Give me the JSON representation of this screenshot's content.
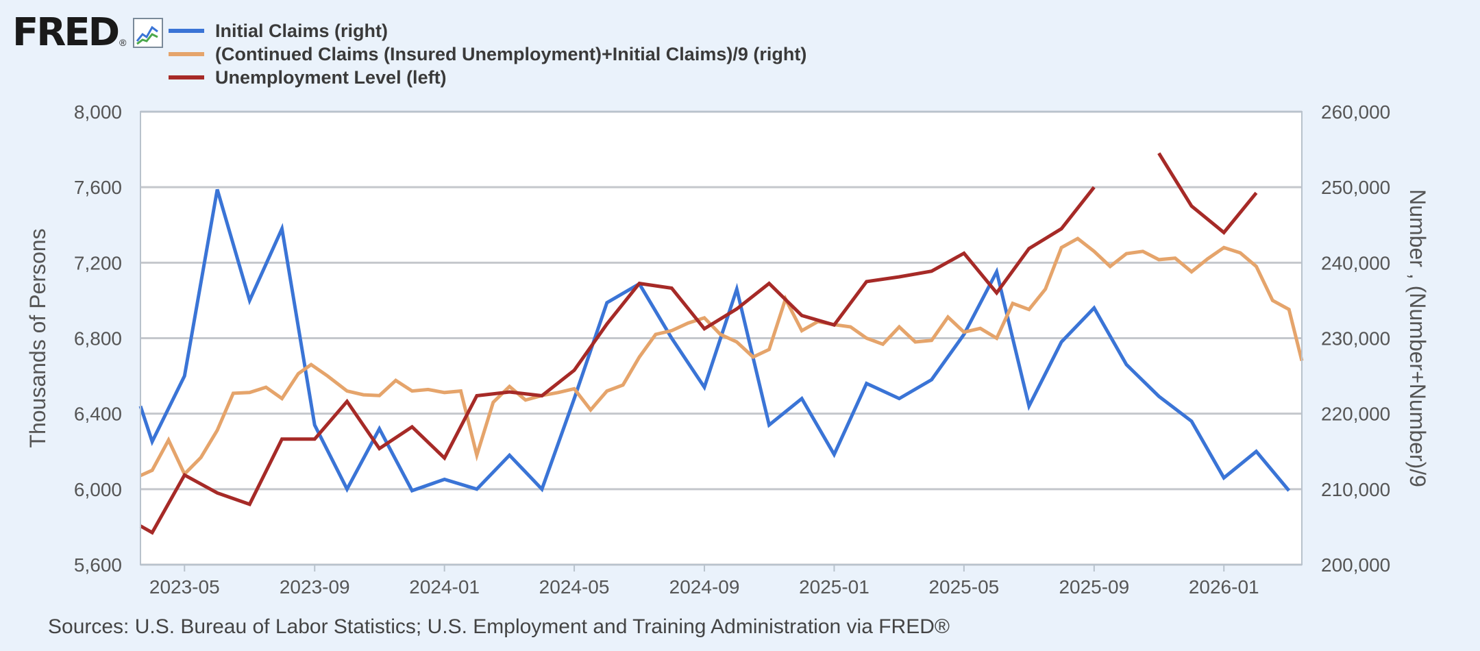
{
  "brand": {
    "logo_text": "FRED",
    "reg_mark": "®",
    "icon": "line-graph-icon"
  },
  "legend": [
    {
      "label": "Initial Claims (right)",
      "color": "#3a74d6"
    },
    {
      "label": "(Continued Claims (Insured Unemployment)+Initial Claims)/9 (right)",
      "color": "#e5a46b"
    },
    {
      "label": "Unemployment Level (left)",
      "color": "#a62a27"
    }
  ],
  "source_text": "Sources: U.S. Bureau of Labor Statistics; U.S. Employment and Training Administration via FRED®",
  "chart_data": {
    "type": "line",
    "title": "",
    "grid": true,
    "legend_position": "top-left",
    "x_ticks": [
      {
        "label": "2023-05",
        "t": 2023.333
      },
      {
        "label": "2023-09",
        "t": 2023.667
      },
      {
        "label": "2024-01",
        "t": 2024.0
      },
      {
        "label": "2024-05",
        "t": 2024.333
      },
      {
        "label": "2024-09",
        "t": 2024.667
      },
      {
        "label": "2025-01",
        "t": 2025.0
      },
      {
        "label": "2025-05",
        "t": 2025.333
      },
      {
        "label": "2025-09",
        "t": 2025.667
      },
      {
        "label": "2026-01",
        "t": 2026.0
      }
    ],
    "xlim": [
      2023.22,
      2026.2
    ],
    "y_left": {
      "label": "Thousands of Persons",
      "lim": [
        5600,
        8000
      ],
      "ticks": [
        {
          "label": "5,600",
          "v": 5600
        },
        {
          "label": "6,000",
          "v": 6000
        },
        {
          "label": "6,400",
          "v": 6400
        },
        {
          "label": "6,800",
          "v": 6800
        },
        {
          "label": "7,200",
          "v": 7200
        },
        {
          "label": "7,600",
          "v": 7600
        },
        {
          "label": "8,000",
          "v": 8000
        }
      ]
    },
    "y_right": {
      "label": "Number , (Number+Number)/9",
      "lim": [
        200000,
        260000
      ],
      "ticks": [
        {
          "label": "200,000",
          "v": 200000
        },
        {
          "label": "210,000",
          "v": 210000
        },
        {
          "label": "220,000",
          "v": 220000
        },
        {
          "label": "230,000",
          "v": 230000
        },
        {
          "label": "240,000",
          "v": 240000
        },
        {
          "label": "250,000",
          "v": 250000
        },
        {
          "label": "260,000",
          "v": 260000
        }
      ]
    },
    "series": [
      {
        "name": "Initial Claims (right)",
        "axis": "right",
        "color": "#3a74d6",
        "points": [
          [
            2023.218,
            221000
          ],
          [
            2023.25,
            216300
          ],
          [
            2023.333,
            225000
          ],
          [
            2023.417,
            249700
          ],
          [
            2023.5,
            235000
          ],
          [
            2023.583,
            244500
          ],
          [
            2023.667,
            218500
          ],
          [
            2023.75,
            210000
          ],
          [
            2023.833,
            218000
          ],
          [
            2023.917,
            209800
          ],
          [
            2024.0,
            211300
          ],
          [
            2024.083,
            210000
          ],
          [
            2024.167,
            214500
          ],
          [
            2024.25,
            210000
          ],
          [
            2024.333,
            222000
          ],
          [
            2024.417,
            234700
          ],
          [
            2024.5,
            237200
          ],
          [
            2024.583,
            230000
          ],
          [
            2024.667,
            223500
          ],
          [
            2024.75,
            236500
          ],
          [
            2024.833,
            218500
          ],
          [
            2024.917,
            222000
          ],
          [
            2025.0,
            214600
          ],
          [
            2025.083,
            224000
          ],
          [
            2025.167,
            222000
          ],
          [
            2025.25,
            224500
          ],
          [
            2025.333,
            230500
          ],
          [
            2025.417,
            238800
          ],
          [
            2025.5,
            221000
          ],
          [
            2025.583,
            229500
          ],
          [
            2025.667,
            234000
          ],
          [
            2025.75,
            226500
          ],
          [
            2025.833,
            222300
          ],
          [
            2025.917,
            219000
          ],
          [
            2026.0,
            211500
          ],
          [
            2026.083,
            215000
          ],
          [
            2026.167,
            209800
          ]
        ]
      },
      {
        "name": "(Continued Claims (Insured Unemployment)+Initial Claims)/9 (right)",
        "axis": "right",
        "color": "#e5a46b",
        "points": [
          [
            2023.218,
            211800
          ],
          [
            2023.25,
            212500
          ],
          [
            2023.292,
            216500
          ],
          [
            2023.333,
            212000
          ],
          [
            2023.375,
            214200
          ],
          [
            2023.417,
            217800
          ],
          [
            2023.458,
            222700
          ],
          [
            2023.5,
            222800
          ],
          [
            2023.542,
            223500
          ],
          [
            2023.583,
            222000
          ],
          [
            2023.625,
            225300
          ],
          [
            2023.658,
            226500
          ],
          [
            2023.7,
            225000
          ],
          [
            2023.75,
            223000
          ],
          [
            2023.792,
            222500
          ],
          [
            2023.833,
            222400
          ],
          [
            2023.875,
            224400
          ],
          [
            2023.917,
            223000
          ],
          [
            2023.958,
            223200
          ],
          [
            2024.0,
            222800
          ],
          [
            2024.042,
            223000
          ],
          [
            2024.083,
            214500
          ],
          [
            2024.125,
            221500
          ],
          [
            2024.167,
            223600
          ],
          [
            2024.208,
            221800
          ],
          [
            2024.25,
            222400
          ],
          [
            2024.292,
            222800
          ],
          [
            2024.333,
            223300
          ],
          [
            2024.375,
            220500
          ],
          [
            2024.417,
            223000
          ],
          [
            2024.458,
            223800
          ],
          [
            2024.5,
            227500
          ],
          [
            2024.542,
            230500
          ],
          [
            2024.583,
            231000
          ],
          [
            2024.625,
            232000
          ],
          [
            2024.667,
            232700
          ],
          [
            2024.708,
            230500
          ],
          [
            2024.75,
            229500
          ],
          [
            2024.792,
            227500
          ],
          [
            2024.833,
            228500
          ],
          [
            2024.875,
            235200
          ],
          [
            2024.917,
            231000
          ],
          [
            2024.958,
            232200
          ],
          [
            2025.0,
            231800
          ],
          [
            2025.042,
            231500
          ],
          [
            2025.083,
            230000
          ],
          [
            2025.125,
            229200
          ],
          [
            2025.167,
            231500
          ],
          [
            2025.208,
            229500
          ],
          [
            2025.25,
            229700
          ],
          [
            2025.292,
            232800
          ],
          [
            2025.333,
            230800
          ],
          [
            2025.375,
            231300
          ],
          [
            2025.417,
            230000
          ],
          [
            2025.458,
            234600
          ],
          [
            2025.5,
            233800
          ],
          [
            2025.542,
            236500
          ],
          [
            2025.583,
            242000
          ],
          [
            2025.625,
            243200
          ],
          [
            2025.667,
            241500
          ],
          [
            2025.708,
            239500
          ],
          [
            2025.75,
            241200
          ],
          [
            2025.792,
            241500
          ],
          [
            2025.833,
            240400
          ],
          [
            2025.875,
            240600
          ],
          [
            2025.917,
            238800
          ],
          [
            2025.958,
            240500
          ],
          [
            2026.0,
            242000
          ],
          [
            2026.042,
            241300
          ],
          [
            2026.083,
            239500
          ],
          [
            2026.125,
            235000
          ],
          [
            2026.167,
            233800
          ],
          [
            2026.2,
            227000
          ]
        ]
      },
      {
        "name": "Unemployment Level (left)",
        "axis": "left",
        "color": "#a62a27",
        "points": [
          [
            2023.218,
            5805
          ],
          [
            2023.25,
            5770
          ],
          [
            2023.333,
            6075
          ],
          [
            2023.417,
            5980
          ],
          [
            2023.5,
            5920
          ],
          [
            2023.583,
            6265
          ],
          [
            2023.667,
            6265
          ],
          [
            2023.75,
            6465
          ],
          [
            2023.833,
            6215
          ],
          [
            2023.917,
            6330
          ],
          [
            2024.0,
            6165
          ],
          [
            2024.083,
            6495
          ],
          [
            2024.167,
            6515
          ],
          [
            2024.25,
            6495
          ],
          [
            2024.333,
            6630
          ],
          [
            2024.417,
            6875
          ],
          [
            2024.5,
            7090
          ],
          [
            2024.583,
            7065
          ],
          [
            2024.667,
            6850
          ],
          [
            2024.75,
            6955
          ],
          [
            2024.833,
            7090
          ],
          [
            2024.917,
            6920
          ],
          [
            2025.0,
            6870
          ],
          [
            2025.083,
            7100
          ],
          [
            2025.167,
            7125
          ],
          [
            2025.25,
            7155
          ],
          [
            2025.333,
            7250
          ],
          [
            2025.417,
            7040
          ],
          [
            2025.5,
            7275
          ],
          [
            2025.583,
            7380
          ],
          [
            2025.667,
            7600
          ],
          [
            2025.75,
            null
          ],
          [
            2025.833,
            7780
          ],
          [
            2025.917,
            7500
          ],
          [
            2026.0,
            7360
          ],
          [
            2026.083,
            7570
          ]
        ]
      }
    ]
  }
}
